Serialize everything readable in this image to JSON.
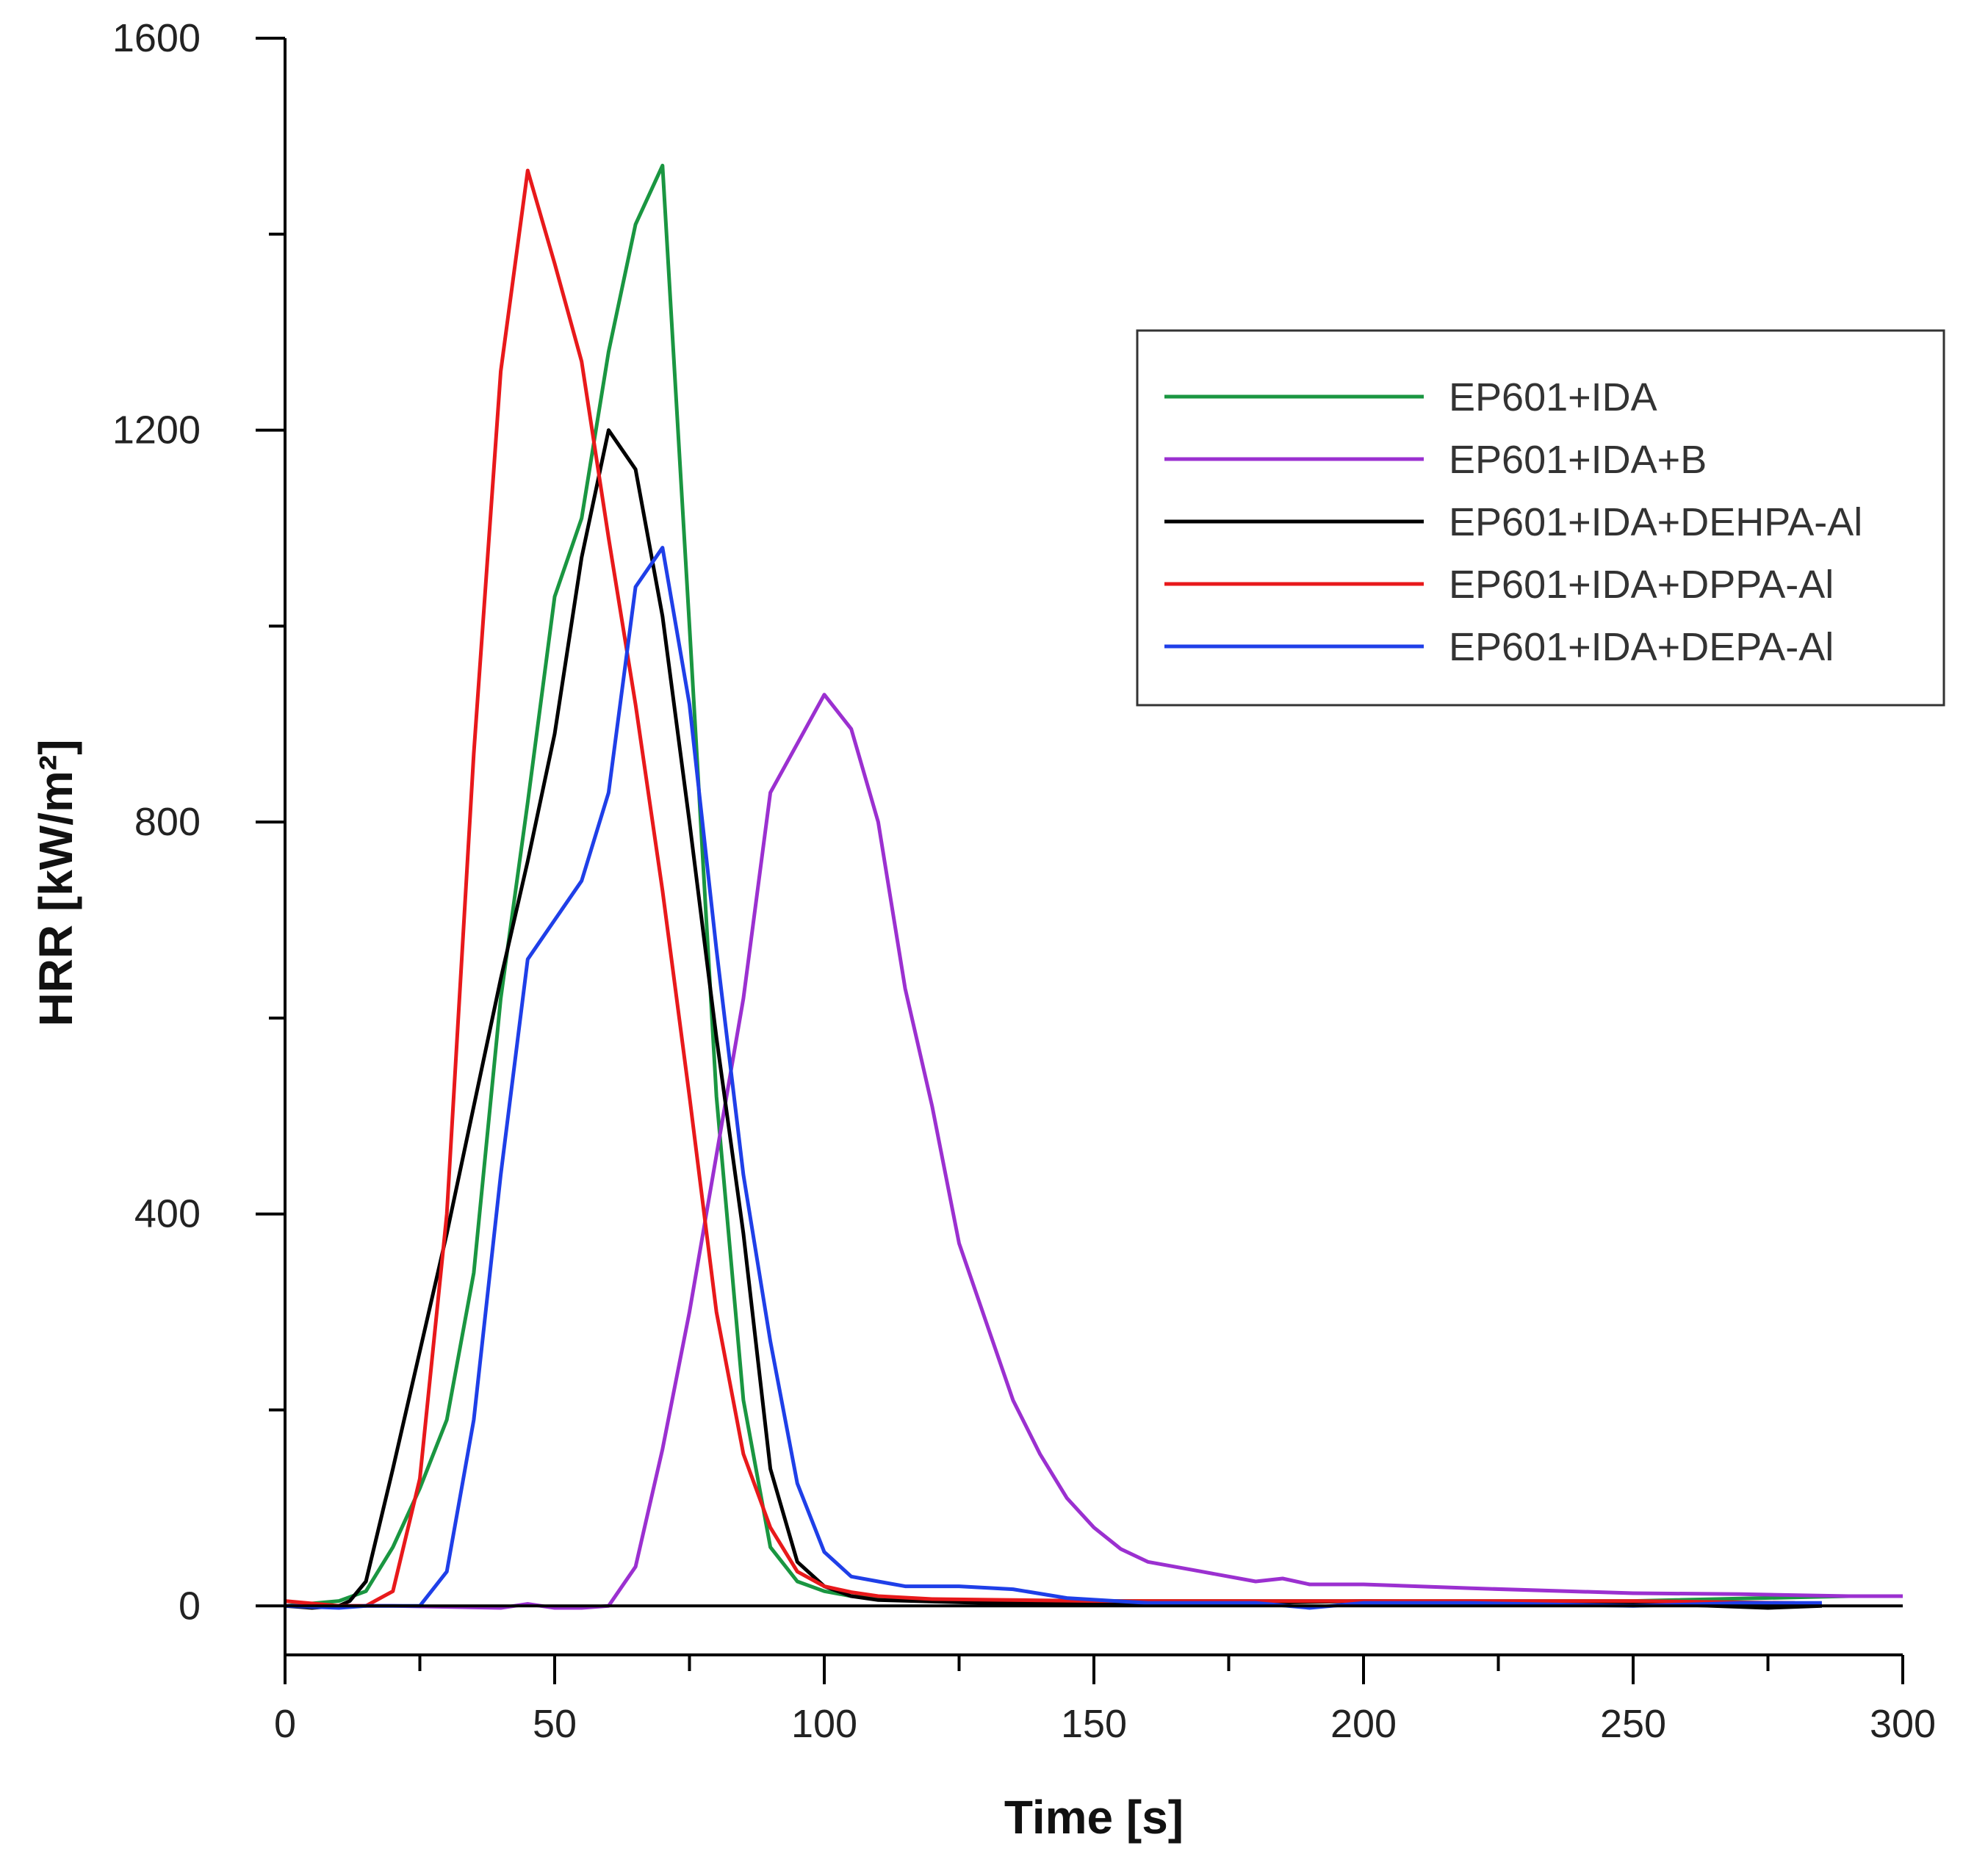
{
  "chart_data": {
    "type": "line",
    "title": "",
    "xlabel": "Time [s]",
    "ylabel": "HRR [kW/m²]",
    "xlim": [
      0,
      300
    ],
    "ylim": [
      -50,
      1600
    ],
    "xticks": [
      0,
      50,
      100,
      150,
      200,
      250,
      300
    ],
    "xtick_labels": [
      "0",
      "50",
      "100",
      "150",
      "200",
      "250",
      "300"
    ],
    "yticks": [
      0,
      400,
      800,
      1200,
      1600
    ],
    "ytick_labels": [
      "0",
      "400",
      "800",
      "1200",
      "1600"
    ],
    "grid": false,
    "legend_position": "top-right",
    "series": [
      {
        "name": "EP601+IDA",
        "color": "#1a9641",
        "x": [
          0,
          10,
          15,
          20,
          25,
          30,
          35,
          40,
          45,
          50,
          55,
          60,
          65,
          70,
          75,
          80,
          85,
          90,
          95,
          100,
          105,
          110,
          120,
          150,
          200,
          250,
          290
        ],
        "y": [
          0,
          5,
          15,
          60,
          120,
          190,
          340,
          620,
          820,
          1030,
          1110,
          1280,
          1410,
          1470,
          1000,
          520,
          210,
          60,
          25,
          15,
          10,
          8,
          5,
          5,
          5,
          5,
          10
        ]
      },
      {
        "name": "EP601+IDA+B",
        "color": "#9b30d0",
        "x": [
          0,
          20,
          40,
          45,
          50,
          55,
          60,
          65,
          70,
          75,
          80,
          85,
          90,
          95,
          100,
          105,
          110,
          115,
          120,
          125,
          130,
          135,
          140,
          145,
          150,
          155,
          160,
          170,
          180,
          185,
          190,
          200,
          220,
          250,
          270,
          290,
          300
        ],
        "y": [
          0,
          0,
          -2,
          2,
          -2,
          -2,
          0,
          40,
          160,
          300,
          460,
          620,
          830,
          880,
          930,
          895,
          800,
          630,
          510,
          370,
          290,
          210,
          155,
          110,
          80,
          58,
          45,
          35,
          25,
          28,
          22,
          22,
          18,
          13,
          12,
          10,
          10
        ]
      },
      {
        "name": "EP601+IDA+DEHPA-Al",
        "color": "#000000",
        "x": [
          0,
          5,
          10,
          12,
          15,
          20,
          25,
          30,
          35,
          40,
          45,
          50,
          55,
          60,
          65,
          70,
          75,
          80,
          85,
          90,
          95,
          100,
          105,
          110,
          130,
          180,
          200,
          250,
          275,
          285
        ],
        "y": [
          0,
          -2,
          0,
          5,
          25,
          140,
          260,
          380,
          510,
          640,
          760,
          890,
          1070,
          1200,
          1160,
          1010,
          800,
          580,
          380,
          140,
          45,
          20,
          10,
          6,
          3,
          3,
          5,
          3,
          -2,
          0
        ]
      },
      {
        "name": "EP601+IDA+DPPA-Al",
        "color": "#e8191b",
        "x": [
          0,
          10,
          15,
          20,
          25,
          30,
          35,
          40,
          45,
          50,
          55,
          60,
          65,
          70,
          75,
          80,
          85,
          90,
          95,
          100,
          105,
          110,
          120,
          150,
          200,
          250,
          280
        ],
        "y": [
          5,
          0,
          0,
          15,
          130,
          400,
          870,
          1260,
          1465,
          1370,
          1270,
          1090,
          920,
          730,
          520,
          300,
          155,
          80,
          35,
          20,
          14,
          10,
          7,
          5,
          5,
          5,
          3
        ]
      },
      {
        "name": "EP601+IDA+DEPA-Al",
        "color": "#1f3fe8",
        "x": [
          0,
          10,
          15,
          20,
          25,
          30,
          35,
          40,
          45,
          50,
          55,
          60,
          65,
          70,
          75,
          80,
          85,
          90,
          95,
          100,
          105,
          110,
          115,
          125,
          135,
          145,
          160,
          180,
          190,
          200,
          220,
          250,
          270,
          285
        ],
        "y": [
          0,
          -2,
          0,
          0,
          0,
          35,
          190,
          440,
          660,
          700,
          740,
          830,
          1040,
          1080,
          920,
          670,
          440,
          270,
          125,
          55,
          30,
          25,
          20,
          20,
          17,
          8,
          3,
          3,
          -2,
          3,
          3,
          0,
          3,
          3
        ]
      }
    ]
  }
}
